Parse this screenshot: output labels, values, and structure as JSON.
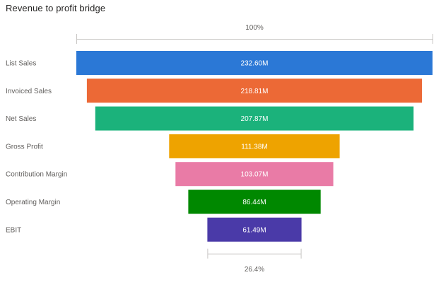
{
  "chart_data": {
    "type": "funnel",
    "title": "Revenue to profit bridge",
    "categories": [
      "List Sales",
      "Invoiced Sales",
      "Net Sales",
      "Gross Profit",
      "Contribution Margin",
      "Operating Margin",
      "EBIT"
    ],
    "values": [
      232.6,
      218.81,
      207.87,
      111.38,
      103.07,
      86.44,
      61.49
    ],
    "value_labels": [
      "232.60M",
      "218.81M",
      "207.87M",
      "111.38M",
      "103.07M",
      "86.44M",
      "61.49M"
    ],
    "colors": [
      "#2b78d6",
      "#ec6936",
      "#1bb27b",
      "#eea300",
      "#e97ba6",
      "#008800",
      "#4a3aa8"
    ],
    "top_percent_label": "100%",
    "bottom_percent_label": "26.4%"
  }
}
